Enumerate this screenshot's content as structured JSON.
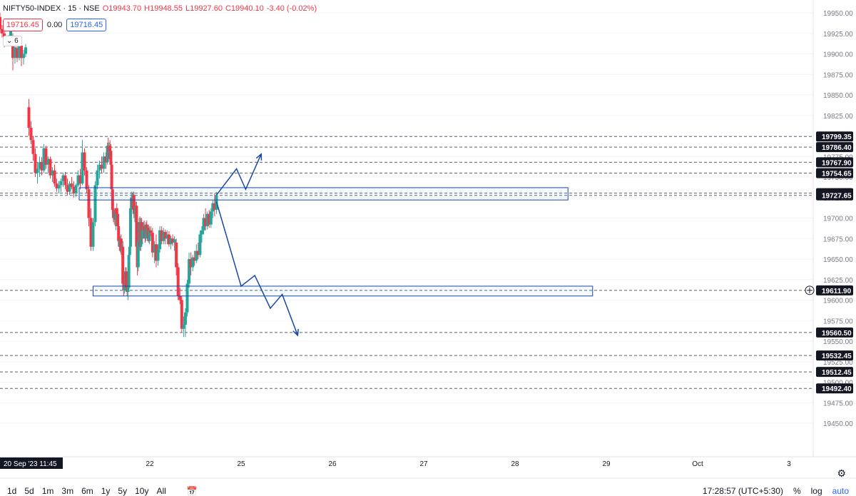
{
  "header": {
    "symbol": "NIFTY50-INDEX · 15 · NSE",
    "open": "O19943.70",
    "high": "H19948.55",
    "low": "L19927.60",
    "close": "C19940.10",
    "change": "-3.40 (-0.02%)"
  },
  "price_boxes": {
    "left": "19716.45",
    "mid": "0.00",
    "right": "19716.45"
  },
  "indicator_toggle": "6",
  "bottom": {
    "timeframes": [
      "1d",
      "5d",
      "1m",
      "3m",
      "6m",
      "1y",
      "5y",
      "10y",
      "All"
    ],
    "time": "17:28:57 (UTC+5:30)",
    "pct": "%",
    "log": "log",
    "auto": "auto"
  },
  "colors": {
    "up": "#26a69a",
    "down": "#f23645",
    "drawing": "#1848a8",
    "grid": "#f0f3fa"
  },
  "chart_data": {
    "type": "candlestick",
    "ylim": [
      19425,
      19960
    ],
    "y_ticks": [
      19450,
      19475,
      19500,
      19525,
      19550,
      19575,
      19600,
      19625,
      19650,
      19675,
      19700,
      19725,
      19750,
      19775,
      19800,
      19825,
      19850,
      19875,
      19900,
      19925,
      19950
    ],
    "x_ticks": [
      {
        "x": 0,
        "label": "20 Sep '23  11:45"
      },
      {
        "x": 2,
        "label": "22"
      },
      {
        "x": 3,
        "label": "25"
      },
      {
        "x": 4,
        "label": "26"
      },
      {
        "x": 5,
        "label": "27"
      },
      {
        "x": 6,
        "label": "28"
      },
      {
        "x": 7,
        "label": "29"
      },
      {
        "x": 8,
        "label": "Oct"
      },
      {
        "x": 9,
        "label": "3"
      }
    ],
    "horizontal_levels": [
      19799.35,
      19786.4,
      19767.9,
      19754.65,
      19730.3,
      19727.65,
      19611.9,
      19560.5,
      19532.45,
      19512.45,
      19492.4
    ],
    "highlighted_level": 19611.9,
    "candles": [
      {
        "x": 0.0,
        "o": 19945,
        "h": 19950,
        "l": 19925,
        "c": 19930
      },
      {
        "x": 0.02,
        "o": 19930,
        "h": 19935,
        "l": 19920,
        "c": 19925
      },
      {
        "x": 0.04,
        "o": 19925,
        "h": 19932,
        "l": 19908,
        "c": 19912
      },
      {
        "x": 0.06,
        "o": 19912,
        "h": 19920,
        "l": 19910,
        "c": 19916
      },
      {
        "x": 0.08,
        "o": 19915,
        "h": 19923,
        "l": 19911,
        "c": 19921
      },
      {
        "x": 0.1,
        "o": 19920,
        "h": 19935,
        "l": 19915,
        "c": 19930
      },
      {
        "x": 0.12,
        "o": 19915,
        "h": 19925,
        "l": 19880,
        "c": 19895
      },
      {
        "x": 0.14,
        "o": 19895,
        "h": 19912,
        "l": 19888,
        "c": 19908
      },
      {
        "x": 0.16,
        "o": 19907,
        "h": 19914,
        "l": 19890,
        "c": 19895
      },
      {
        "x": 0.18,
        "o": 19895,
        "h": 19912,
        "l": 19892,
        "c": 19910
      },
      {
        "x": 0.2,
        "o": 19910,
        "h": 19915,
        "l": 19885,
        "c": 19895
      },
      {
        "x": 0.22,
        "o": 19895,
        "h": 19905,
        "l": 19887,
        "c": 19900
      },
      {
        "x": 0.24,
        "o": 19900,
        "h": 19912,
        "l": 19896,
        "c": 19908
      },
      {
        "x": 0.27,
        "o": 19835,
        "h": 19845,
        "l": 19800,
        "c": 19810
      },
      {
        "x": 0.29,
        "o": 19810,
        "h": 19818,
        "l": 19790,
        "c": 19795
      },
      {
        "x": 0.31,
        "o": 19795,
        "h": 19800,
        "l": 19770,
        "c": 19778
      },
      {
        "x": 0.33,
        "o": 19778,
        "h": 19785,
        "l": 19750,
        "c": 19755
      },
      {
        "x": 0.35,
        "o": 19755,
        "h": 19768,
        "l": 19742,
        "c": 19760
      },
      {
        "x": 0.37,
        "o": 19760,
        "h": 19775,
        "l": 19750,
        "c": 19768
      },
      {
        "x": 0.39,
        "o": 19768,
        "h": 19774,
        "l": 19752,
        "c": 19758
      },
      {
        "x": 0.41,
        "o": 19758,
        "h": 19790,
        "l": 19755,
        "c": 19785
      },
      {
        "x": 0.43,
        "o": 19785,
        "h": 19788,
        "l": 19760,
        "c": 19765
      },
      {
        "x": 0.45,
        "o": 19765,
        "h": 19775,
        "l": 19755,
        "c": 19772
      },
      {
        "x": 0.47,
        "o": 19772,
        "h": 19775,
        "l": 19748,
        "c": 19752
      },
      {
        "x": 0.49,
        "o": 19752,
        "h": 19762,
        "l": 19744,
        "c": 19758
      },
      {
        "x": 0.51,
        "o": 19758,
        "h": 19765,
        "l": 19738,
        "c": 19742
      },
      {
        "x": 0.53,
        "o": 19742,
        "h": 19748,
        "l": 19732,
        "c": 19736
      },
      {
        "x": 0.55,
        "o": 19736,
        "h": 19745,
        "l": 19730,
        "c": 19740
      },
      {
        "x": 0.57,
        "o": 19740,
        "h": 19748,
        "l": 19732,
        "c": 19745
      },
      {
        "x": 0.59,
        "o": 19745,
        "h": 19755,
        "l": 19738,
        "c": 19752
      },
      {
        "x": 0.61,
        "o": 19752,
        "h": 19756,
        "l": 19735,
        "c": 19740
      },
      {
        "x": 0.63,
        "o": 19740,
        "h": 19748,
        "l": 19728,
        "c": 19732
      },
      {
        "x": 0.65,
        "o": 19732,
        "h": 19745,
        "l": 19728,
        "c": 19742
      },
      {
        "x": 0.67,
        "o": 19742,
        "h": 19750,
        "l": 19735,
        "c": 19738
      },
      {
        "x": 0.69,
        "o": 19738,
        "h": 19745,
        "l": 19725,
        "c": 19730
      },
      {
        "x": 0.71,
        "o": 19730,
        "h": 19742,
        "l": 19726,
        "c": 19740
      },
      {
        "x": 0.73,
        "o": 19740,
        "h": 19758,
        "l": 19738,
        "c": 19752
      },
      {
        "x": 0.75,
        "o": 19752,
        "h": 19760,
        "l": 19735,
        "c": 19742
      },
      {
        "x": 0.77,
        "o": 19742,
        "h": 19795,
        "l": 19740,
        "c": 19780
      },
      {
        "x": 0.79,
        "o": 19780,
        "h": 19785,
        "l": 19752,
        "c": 19758
      },
      {
        "x": 0.81,
        "o": 19758,
        "h": 19762,
        "l": 19730,
        "c": 19735
      },
      {
        "x": 0.83,
        "o": 19735,
        "h": 19740,
        "l": 19690,
        "c": 19700
      },
      {
        "x": 0.85,
        "o": 19700,
        "h": 19712,
        "l": 19660,
        "c": 19665
      },
      {
        "x": 0.87,
        "o": 19665,
        "h": 19700,
        "l": 19660,
        "c": 19695
      },
      {
        "x": 0.89,
        "o": 19695,
        "h": 19745,
        "l": 19690,
        "c": 19740
      },
      {
        "x": 0.91,
        "o": 19740,
        "h": 19765,
        "l": 19735,
        "c": 19758
      },
      {
        "x": 0.93,
        "o": 19758,
        "h": 19770,
        "l": 19748,
        "c": 19765
      },
      {
        "x": 0.95,
        "o": 19765,
        "h": 19775,
        "l": 19755,
        "c": 19760
      },
      {
        "x": 0.97,
        "o": 19760,
        "h": 19780,
        "l": 19755,
        "c": 19775
      },
      {
        "x": 0.99,
        "o": 19775,
        "h": 19780,
        "l": 19760,
        "c": 19768
      },
      {
        "x": 1.01,
        "o": 19768,
        "h": 19792,
        "l": 19765,
        "c": 19788
      },
      {
        "x": 1.03,
        "o": 19788,
        "h": 19798,
        "l": 19770,
        "c": 19780
      },
      {
        "x": 1.05,
        "o": 19780,
        "h": 19792,
        "l": 19772,
        "c": 19788
      },
      {
        "x": 1.07,
        "o": 19788,
        "h": 19795,
        "l": 19775,
        "c": 19782
      },
      {
        "x": 1.09,
        "o": 19782,
        "h": 19790,
        "l": 19760,
        "c": 19765
      },
      {
        "x": 1.11,
        "o": 19765,
        "h": 19768,
        "l": 19730,
        "c": 19735
      },
      {
        "x": 1.13,
        "o": 19735,
        "h": 19740,
        "l": 19705,
        "c": 19710
      },
      {
        "x": 1.15,
        "o": 19710,
        "h": 19718,
        "l": 19695,
        "c": 19700
      },
      {
        "x": 1.17,
        "o": 19700,
        "h": 19712,
        "l": 19692,
        "c": 19705
      },
      {
        "x": 1.19,
        "o": 19705,
        "h": 19712,
        "l": 19690,
        "c": 19698
      },
      {
        "x": 1.21,
        "o": 19698,
        "h": 19710,
        "l": 19685,
        "c": 19705
      },
      {
        "x": 1.23,
        "o": 19712,
        "h": 19718,
        "l": 19700,
        "c": 19705
      },
      {
        "x": 1.25,
        "o": 19705,
        "h": 19710,
        "l": 19680,
        "c": 19690
      },
      {
        "x": 1.27,
        "o": 19690,
        "h": 19695,
        "l": 19668,
        "c": 19672
      },
      {
        "x": 1.29,
        "o": 19672,
        "h": 19680,
        "l": 19660,
        "c": 19665
      },
      {
        "x": 1.31,
        "o": 19665,
        "h": 19678,
        "l": 19658,
        "c": 19675
      },
      {
        "x": 1.33,
        "o": 19675,
        "h": 19680,
        "l": 19655,
        "c": 19660
      },
      {
        "x": 1.35,
        "o": 19660,
        "h": 19670,
        "l": 19650,
        "c": 19665
      },
      {
        "x": 1.37,
        "o": 19665,
        "h": 19672,
        "l": 19615,
        "c": 19620
      },
      {
        "x": 1.39,
        "o": 19620,
        "h": 19625,
        "l": 19605,
        "c": 19612
      },
      {
        "x": 1.41,
        "o": 19612,
        "h": 19622,
        "l": 19608,
        "c": 19618
      },
      {
        "x": 1.43,
        "o": 19618,
        "h": 19640,
        "l": 19612,
        "c": 19635
      },
      {
        "x": 1.45,
        "o": 19635,
        "h": 19640,
        "l": 19612,
        "c": 19615
      },
      {
        "x": 1.47,
        "o": 19615,
        "h": 19620,
        "l": 19605,
        "c": 19610
      },
      {
        "x": 1.49,
        "o": 19610,
        "h": 19618,
        "l": 19600,
        "c": 19615
      },
      {
        "x": 1.51,
        "o": 19615,
        "h": 19660,
        "l": 19612,
        "c": 19655
      },
      {
        "x": 1.53,
        "o": 19655,
        "h": 19672,
        "l": 19650,
        "c": 19665
      },
      {
        "x": 1.55,
        "o": 19665,
        "h": 19718,
        "l": 19660,
        "c": 19712
      },
      {
        "x": 1.57,
        "o": 19712,
        "h": 19732,
        "l": 19705,
        "c": 19725
      },
      {
        "x": 1.59,
        "o": 19725,
        "h": 19730,
        "l": 19710,
        "c": 19715
      },
      {
        "x": 1.61,
        "o": 19715,
        "h": 19732,
        "l": 19708,
        "c": 19728
      },
      {
        "x": 1.63,
        "o": 19728,
        "h": 19732,
        "l": 19700,
        "c": 19705
      },
      {
        "x": 1.65,
        "o": 19705,
        "h": 19715,
        "l": 19695,
        "c": 19710
      },
      {
        "x": 1.67,
        "o": 19710,
        "h": 19720,
        "l": 19698,
        "c": 19715
      },
      {
        "x": 1.69,
        "o": 19715,
        "h": 19720,
        "l": 19655,
        "c": 19665
      },
      {
        "x": 1.71,
        "o": 19665,
        "h": 19670,
        "l": 19630,
        "c": 19640
      },
      {
        "x": 1.73,
        "o": 19640,
        "h": 19680,
        "l": 19635,
        "c": 19672
      },
      {
        "x": 1.75,
        "o": 19672,
        "h": 19700,
        "l": 19665,
        "c": 19695
      },
      {
        "x": 1.77,
        "o": 19695,
        "h": 19702,
        "l": 19660,
        "c": 19665
      },
      {
        "x": 1.79,
        "o": 19665,
        "h": 19700,
        "l": 19660,
        "c": 19695
      },
      {
        "x": 1.81,
        "o": 19695,
        "h": 19700,
        "l": 19670,
        "c": 19675
      },
      {
        "x": 1.83,
        "o": 19675,
        "h": 19688,
        "l": 19668,
        "c": 19685
      },
      {
        "x": 1.85,
        "o": 19685,
        "h": 19695,
        "l": 19680,
        "c": 19690
      },
      {
        "x": 1.87,
        "o": 19690,
        "h": 19697,
        "l": 19682,
        "c": 19685
      },
      {
        "x": 1.89,
        "o": 19685,
        "h": 19692,
        "l": 19670,
        "c": 19675
      },
      {
        "x": 1.91,
        "o": 19675,
        "h": 19695,
        "l": 19672,
        "c": 19692
      },
      {
        "x": 1.93,
        "o": 19692,
        "h": 19697,
        "l": 19678,
        "c": 19682
      },
      {
        "x": 1.95,
        "o": 19682,
        "h": 19690,
        "l": 19675,
        "c": 19688
      },
      {
        "x": 1.97,
        "o": 19688,
        "h": 19692,
        "l": 19670,
        "c": 19672
      },
      {
        "x": 1.99,
        "o": 19672,
        "h": 19690,
        "l": 19668,
        "c": 19685
      },
      {
        "x": 2.01,
        "o": 19685,
        "h": 19690,
        "l": 19678,
        "c": 19682
      },
      {
        "x": 2.03,
        "o": 19682,
        "h": 19688,
        "l": 19652,
        "c": 19658
      },
      {
        "x": 2.05,
        "o": 19658,
        "h": 19672,
        "l": 19645,
        "c": 19668
      },
      {
        "x": 2.07,
        "o": 19668,
        "h": 19680,
        "l": 19640,
        "c": 19648
      },
      {
        "x": 2.09,
        "o": 19648,
        "h": 19668,
        "l": 19642,
        "c": 19662
      },
      {
        "x": 2.11,
        "o": 19662,
        "h": 19690,
        "l": 19658,
        "c": 19685
      },
      {
        "x": 2.13,
        "o": 19685,
        "h": 19690,
        "l": 19668,
        "c": 19672
      },
      {
        "x": 2.15,
        "o": 19672,
        "h": 19688,
        "l": 19668,
        "c": 19683
      },
      {
        "x": 2.17,
        "o": 19683,
        "h": 19686,
        "l": 19668,
        "c": 19675
      },
      {
        "x": 2.19,
        "o": 19675,
        "h": 19685,
        "l": 19668,
        "c": 19680
      },
      {
        "x": 2.21,
        "o": 19680,
        "h": 19684,
        "l": 19665,
        "c": 19668
      },
      {
        "x": 2.23,
        "o": 19668,
        "h": 19678,
        "l": 19662,
        "c": 19675
      },
      {
        "x": 2.25,
        "o": 19675,
        "h": 19680,
        "l": 19666,
        "c": 19670
      },
      {
        "x": 2.27,
        "o": 19670,
        "h": 19678,
        "l": 19660,
        "c": 19674
      },
      {
        "x": 2.29,
        "o": 19670,
        "h": 19675,
        "l": 19630,
        "c": 19640
      },
      {
        "x": 2.31,
        "o": 19640,
        "h": 19645,
        "l": 19600,
        "c": 19605
      },
      {
        "x": 2.33,
        "o": 19605,
        "h": 19615,
        "l": 19595,
        "c": 19600
      },
      {
        "x": 2.35,
        "o": 19600,
        "h": 19605,
        "l": 19560,
        "c": 19565
      },
      {
        "x": 2.37,
        "o": 19565,
        "h": 19580,
        "l": 19555,
        "c": 19570
      },
      {
        "x": 2.39,
        "o": 19570,
        "h": 19590,
        "l": 19555,
        "c": 19585
      },
      {
        "x": 2.41,
        "o": 19585,
        "h": 19625,
        "l": 19580,
        "c": 19620
      },
      {
        "x": 2.43,
        "o": 19620,
        "h": 19658,
        "l": 19615,
        "c": 19650
      },
      {
        "x": 2.45,
        "o": 19650,
        "h": 19658,
        "l": 19630,
        "c": 19640
      },
      {
        "x": 2.47,
        "o": 19640,
        "h": 19655,
        "l": 19635,
        "c": 19652
      },
      {
        "x": 2.49,
        "o": 19652,
        "h": 19660,
        "l": 19642,
        "c": 19648
      },
      {
        "x": 2.51,
        "o": 19648,
        "h": 19668,
        "l": 19645,
        "c": 19660
      },
      {
        "x": 2.53,
        "o": 19660,
        "h": 19670,
        "l": 19650,
        "c": 19655
      },
      {
        "x": 2.55,
        "o": 19655,
        "h": 19685,
        "l": 19652,
        "c": 19680
      },
      {
        "x": 2.57,
        "o": 19680,
        "h": 19690,
        "l": 19670,
        "c": 19685
      },
      {
        "x": 2.59,
        "o": 19685,
        "h": 19705,
        "l": 19680,
        "c": 19700
      },
      {
        "x": 2.61,
        "o": 19700,
        "h": 19712,
        "l": 19685,
        "c": 19690
      },
      {
        "x": 2.63,
        "o": 19690,
        "h": 19708,
        "l": 19686,
        "c": 19705
      },
      {
        "x": 2.65,
        "o": 19705,
        "h": 19710,
        "l": 19688,
        "c": 19692
      },
      {
        "x": 2.67,
        "o": 19692,
        "h": 19712,
        "l": 19688,
        "c": 19708
      },
      {
        "x": 2.69,
        "o": 19708,
        "h": 19722,
        "l": 19700,
        "c": 19718
      },
      {
        "x": 2.71,
        "o": 19718,
        "h": 19730,
        "l": 19702,
        "c": 19710
      },
      {
        "x": 2.73,
        "o": 19710,
        "h": 19732,
        "l": 19705,
        "c": 19728
      }
    ],
    "drawings": {
      "resistance_zone": {
        "x1": 0.74,
        "x2": 6.58,
        "y_top": 19737,
        "y_bottom": 19722
      },
      "support_zone": {
        "x1": 0.87,
        "x2": 6.85,
        "y_top": 19617,
        "y_bottom": 19605
      },
      "bullish_path": [
        [
          2.73,
          19728
        ],
        [
          2.95,
          19760
        ],
        [
          3.05,
          19735
        ],
        [
          3.22,
          19778
        ]
      ],
      "bearish_path": [
        [
          2.73,
          19720
        ],
        [
          3.0,
          19617
        ],
        [
          3.15,
          19630
        ],
        [
          3.32,
          19590
        ],
        [
          3.45,
          19607
        ],
        [
          3.62,
          19557
        ]
      ]
    }
  }
}
